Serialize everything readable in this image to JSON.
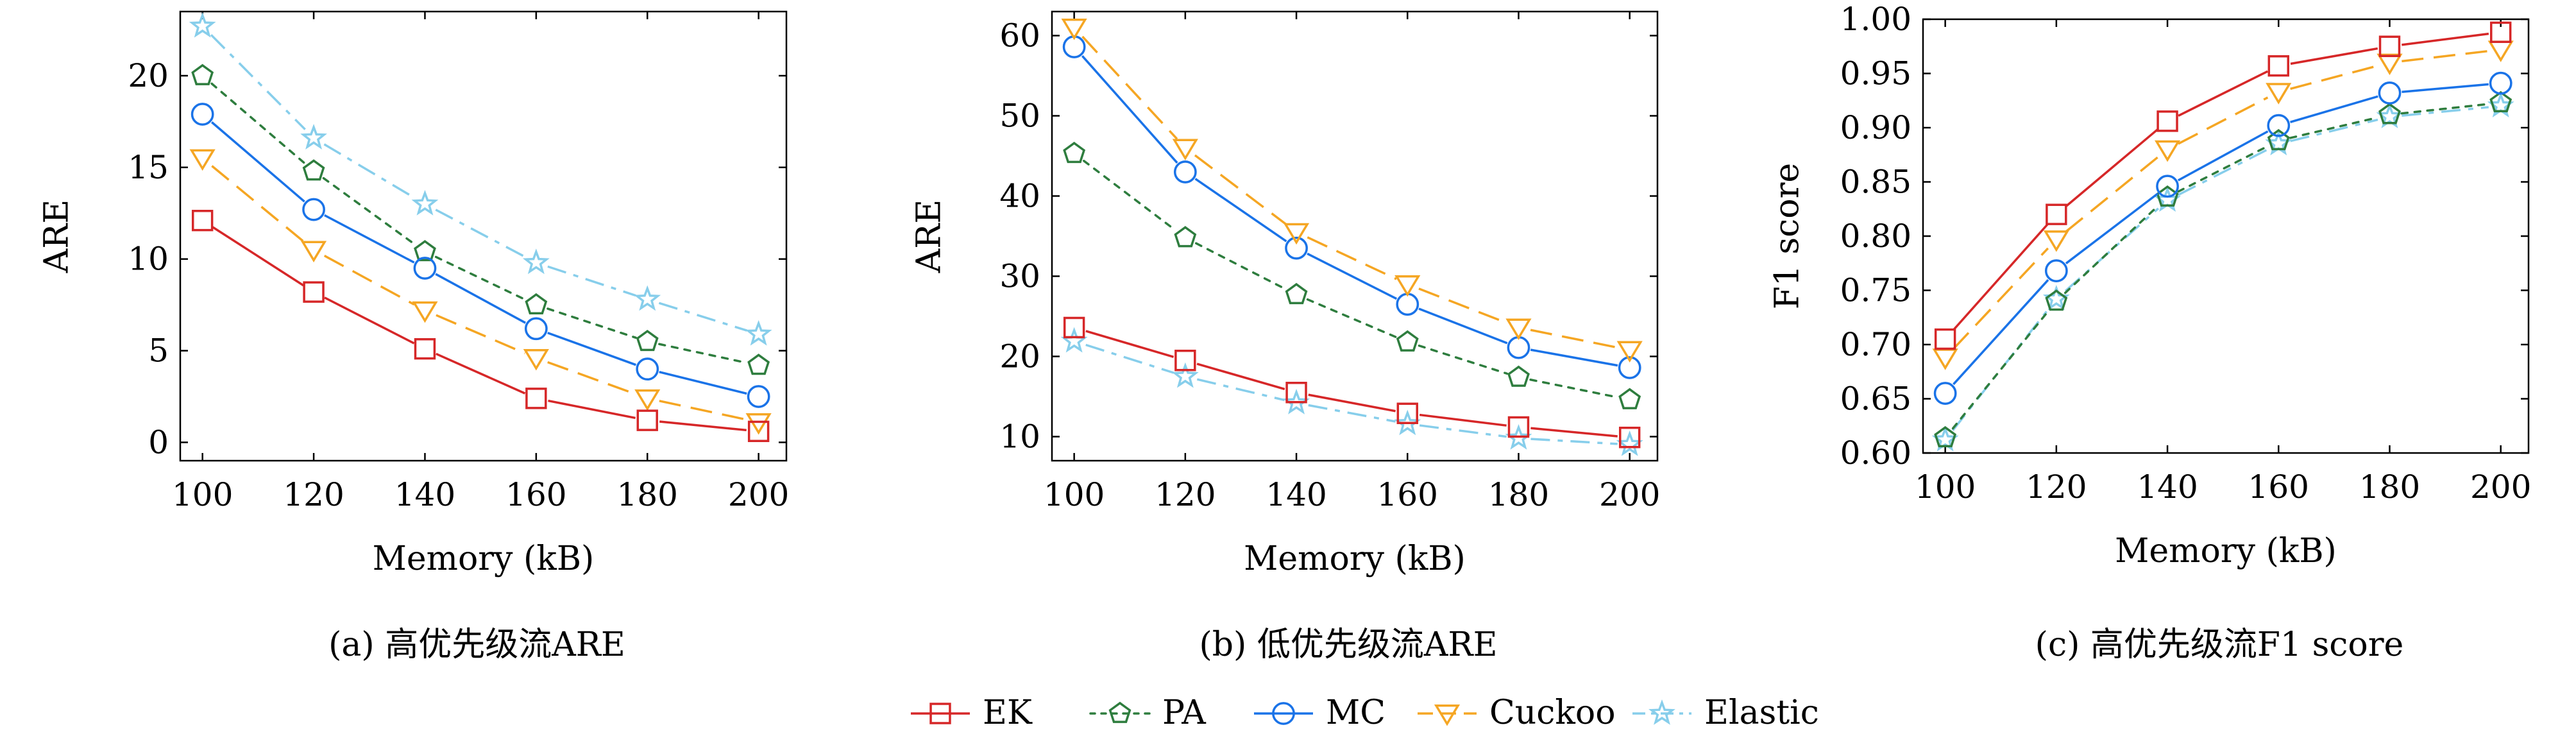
{
  "legend": {
    "placement": "bottom-center",
    "entries": [
      {
        "name": "EK",
        "color": "#d62728",
        "marker": "square",
        "dash": "solid"
      },
      {
        "name": "PA",
        "color": "#2e7d3e",
        "marker": "pentagon",
        "dash": "dotted"
      },
      {
        "name": "MC",
        "color": "#1a73e8",
        "marker": "circle",
        "dash": "solid"
      },
      {
        "name": "Cuckoo",
        "color": "#f5a623",
        "marker": "triangle-down",
        "dash": "dashed"
      },
      {
        "name": "Elastic",
        "color": "#87ceeb",
        "marker": "star",
        "dash": "dashdot"
      }
    ]
  },
  "chart_data": [
    {
      "type": "line",
      "caption": "(a) 高优先级流ARE",
      "xlabel": "Memory (kB)",
      "ylabel": "ARE",
      "x": [
        100,
        120,
        140,
        160,
        180,
        200
      ],
      "xticks": [
        "100",
        "120",
        "140",
        "160",
        "180",
        "200"
      ],
      "xlim": [
        96,
        205
      ],
      "ylim": [
        -1,
        23.5
      ],
      "yticks": [
        0,
        5,
        10,
        15,
        20
      ],
      "ytick_labels": [
        "0",
        "5",
        "10",
        "15",
        "20"
      ],
      "grid": false,
      "series": [
        {
          "name": "EK",
          "values": [
            12.1,
            8.2,
            5.1,
            2.4,
            1.2,
            0.6
          ]
        },
        {
          "name": "PA",
          "values": [
            20.0,
            14.8,
            10.4,
            7.5,
            5.5,
            4.2
          ]
        },
        {
          "name": "MC",
          "values": [
            17.9,
            12.7,
            9.5,
            6.2,
            4.0,
            2.5
          ]
        },
        {
          "name": "Cuckoo",
          "values": [
            15.5,
            10.5,
            7.2,
            4.6,
            2.4,
            1.1
          ]
        },
        {
          "name": "Elastic",
          "values": [
            22.7,
            16.6,
            13.0,
            9.8,
            7.8,
            5.9
          ]
        }
      ]
    },
    {
      "type": "line",
      "caption": "(b) 低优先级流ARE",
      "xlabel": "Memory (kB)",
      "ylabel": "ARE",
      "x": [
        100,
        120,
        140,
        160,
        180,
        200
      ],
      "xticks": [
        "100",
        "120",
        "140",
        "160",
        "180",
        "200"
      ],
      "xlim": [
        96,
        205
      ],
      "ylim": [
        7,
        63
      ],
      "yticks": [
        10,
        20,
        30,
        40,
        50,
        60
      ],
      "ytick_labels": [
        "10",
        "20",
        "30",
        "40",
        "50",
        "60"
      ],
      "grid": false,
      "series": [
        {
          "name": "EK",
          "values": [
            23.6,
            19.5,
            15.5,
            12.9,
            11.2,
            9.9
          ]
        },
        {
          "name": "PA",
          "values": [
            45.3,
            34.8,
            27.7,
            21.8,
            17.4,
            14.6
          ]
        },
        {
          "name": "MC",
          "values": [
            58.6,
            43.0,
            33.5,
            26.5,
            21.1,
            18.6
          ]
        },
        {
          "name": "Cuckoo",
          "values": [
            61.0,
            46.0,
            35.5,
            29.0,
            23.6,
            20.8
          ]
        },
        {
          "name": "Elastic",
          "values": [
            21.9,
            17.5,
            14.2,
            11.6,
            9.8,
            9.0
          ]
        }
      ]
    },
    {
      "type": "line",
      "caption": "(c) 高优先级流F1 score",
      "xlabel": "Memory (kB)",
      "ylabel": "F1 score",
      "x": [
        100,
        120,
        140,
        160,
        180,
        200
      ],
      "xticks": [
        "100",
        "120",
        "140",
        "160",
        "180",
        "200"
      ],
      "xlim": [
        96,
        205
      ],
      "ylim": [
        0.6,
        1.0
      ],
      "yticks": [
        0.6,
        0.65,
        0.7,
        0.75,
        0.8,
        0.85,
        0.9,
        0.95,
        1.0
      ],
      "ytick_labels": [
        "0.60",
        "0.65",
        "0.70",
        "0.75",
        "0.80",
        "0.85",
        "0.90",
        "0.95",
        "1.00"
      ],
      "grid": false,
      "series": [
        {
          "name": "EK",
          "values": [
            0.705,
            0.82,
            0.906,
            0.957,
            0.975,
            0.988
          ]
        },
        {
          "name": "PA",
          "values": [
            0.614,
            0.74,
            0.836,
            0.888,
            0.912,
            0.923
          ]
        },
        {
          "name": "MC",
          "values": [
            0.655,
            0.768,
            0.846,
            0.902,
            0.932,
            0.941
          ]
        },
        {
          "name": "Cuckoo",
          "values": [
            0.688,
            0.797,
            0.88,
            0.933,
            0.96,
            0.972
          ]
        },
        {
          "name": "Elastic",
          "values": [
            0.612,
            0.742,
            0.833,
            0.885,
            0.91,
            0.92
          ]
        }
      ]
    }
  ]
}
